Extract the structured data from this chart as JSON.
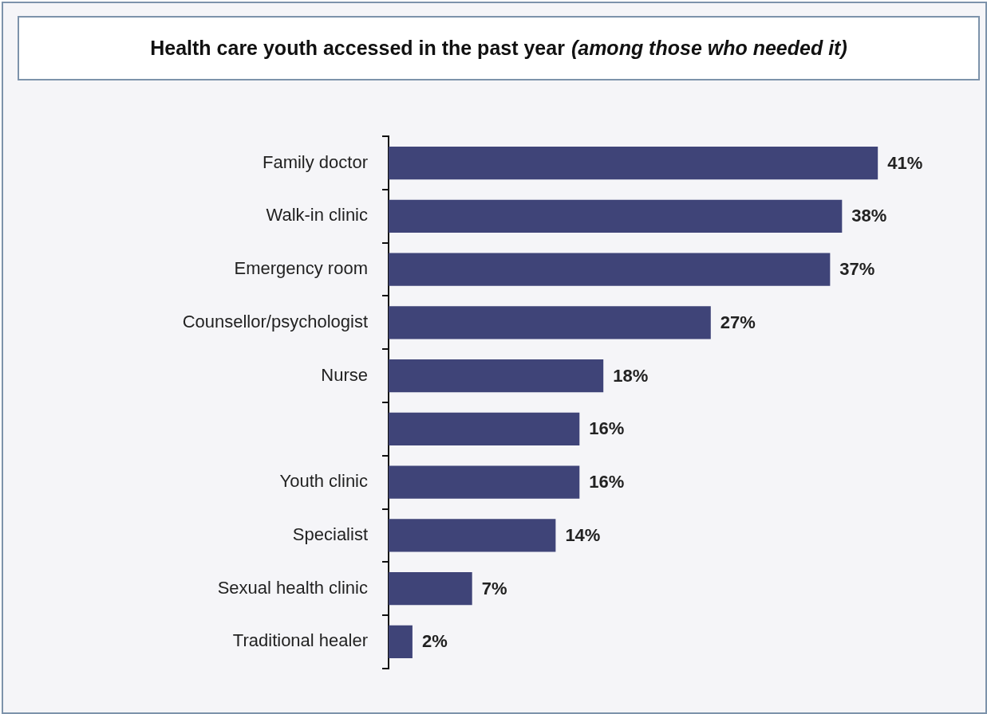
{
  "chart_data": {
    "type": "bar",
    "orientation": "horizontal",
    "title": "Health care youth accessed in the past year",
    "subtitle": "(among those who needed it)",
    "categories": [
      "Family doctor",
      "Walk-in clinic",
      "Emergency room",
      "Counsellor/psychologist",
      "Nurse",
      null,
      "Youth clinic",
      "Specialist",
      "Sexual health clinic",
      "Traditional healer"
    ],
    "values": [
      41,
      38,
      37,
      27,
      18,
      16,
      16,
      14,
      7,
      2
    ],
    "value_labels": [
      "41%",
      "38%",
      "37%",
      "27%",
      "18%",
      "16%",
      "16%",
      "14%",
      "7%",
      "2%"
    ],
    "color": "#3f4478",
    "tick_labels": "y"
  }
}
